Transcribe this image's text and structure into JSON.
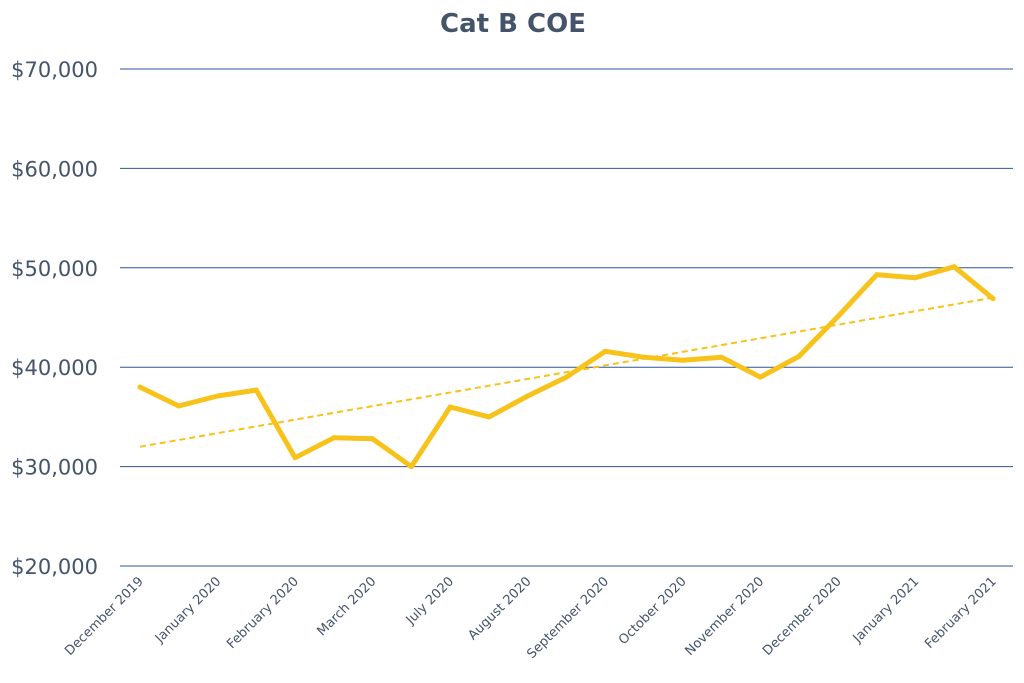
{
  "chart_data": {
    "type": "line",
    "title": "Cat B COE",
    "xlabel": "",
    "ylabel": "",
    "ylim": [
      20000,
      70000
    ],
    "yticks": [
      {
        "value": 70000,
        "label": "$70,000"
      },
      {
        "value": 60000,
        "label": "$60,000"
      },
      {
        "value": 50000,
        "label": "$50,000"
      },
      {
        "value": 40000,
        "label": "$40,000"
      },
      {
        "value": 30000,
        "label": "$30,000"
      },
      {
        "value": 20000,
        "label": "$20,000"
      }
    ],
    "xticks": [
      {
        "index": 0,
        "label": "December 2019"
      },
      {
        "index": 2,
        "label": "January 2020"
      },
      {
        "index": 4,
        "label": "February 2020"
      },
      {
        "index": 6,
        "label": "March 2020"
      },
      {
        "index": 8,
        "label": "July 2020"
      },
      {
        "index": 10,
        "label": "August 2020"
      },
      {
        "index": 12,
        "label": "September 2020"
      },
      {
        "index": 14,
        "label": "October 2020"
      },
      {
        "index": 16,
        "label": "November 2020"
      },
      {
        "index": 18,
        "label": "December 2020"
      },
      {
        "index": 20,
        "label": "January 2021"
      },
      {
        "index": 22,
        "label": "February 2021"
      }
    ],
    "series": [
      {
        "values": [
          38000,
          36100,
          37100,
          37700,
          30900,
          32900,
          32800,
          30000,
          36000,
          35000,
          37100,
          39000,
          41600,
          41000,
          40700,
          41000,
          39000,
          41100,
          45100,
          49300,
          49000,
          50100,
          46900
        ],
        "color": "#f7c21a"
      }
    ],
    "trendline": {
      "style": "linear",
      "color": "#f7c21a",
      "start": 32000,
      "end": 47000
    },
    "grid": true,
    "legend": "none"
  }
}
